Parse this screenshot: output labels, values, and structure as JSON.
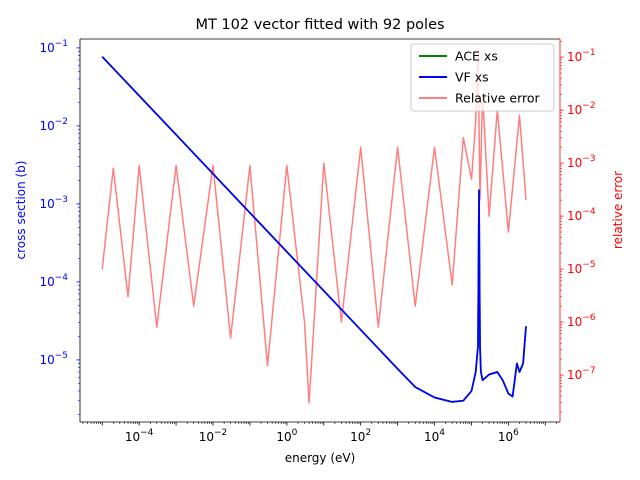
{
  "chart_data": {
    "type": "line",
    "title": "MT 102 vector fitted with 92 poles",
    "xlabel": "energy (eV)",
    "ylabel_left": "cross section (b)",
    "ylabel_right": "relative error",
    "x_scale": "log",
    "y_scale_left": "log",
    "y_scale_right": "log",
    "xlim": [
      2.5e-06,
      25000000
    ],
    "ylim_left": [
      1.6e-06,
      0.13
    ],
    "ylim_right": [
      1.3e-08,
      0.22
    ],
    "grid": false,
    "legend_position": "upper-right",
    "x_ticks": [
      {
        "value": 0.0001,
        "base": "10",
        "exp": "−4"
      },
      {
        "value": 0.01,
        "base": "10",
        "exp": "−2"
      },
      {
        "value": 1,
        "base": "10",
        "exp": "0"
      },
      {
        "value": 100,
        "base": "10",
        "exp": "2"
      },
      {
        "value": 10000,
        "base": "10",
        "exp": "4"
      },
      {
        "value": 1000000,
        "base": "10",
        "exp": "6"
      }
    ],
    "y_left_ticks": [
      {
        "value": 0.1,
        "base": "10",
        "exp": "−1"
      },
      {
        "value": 0.01,
        "base": "10",
        "exp": "−2"
      },
      {
        "value": 0.001,
        "base": "10",
        "exp": "−3"
      },
      {
        "value": 0.0001,
        "base": "10",
        "exp": "−4"
      },
      {
        "value": 1e-05,
        "base": "10",
        "exp": "−5"
      }
    ],
    "y_right_ticks": [
      {
        "value": 0.1,
        "base": "10",
        "exp": "−1"
      },
      {
        "value": 0.01,
        "base": "10",
        "exp": "−2"
      },
      {
        "value": 0.001,
        "base": "10",
        "exp": "−3"
      },
      {
        "value": 0.0001,
        "base": "10",
        "exp": "−4"
      },
      {
        "value": 1e-05,
        "base": "10",
        "exp": "−5"
      },
      {
        "value": 1e-06,
        "base": "10",
        "exp": "−6"
      },
      {
        "value": 1e-07,
        "base": "10",
        "exp": "−7"
      }
    ],
    "colors": {
      "ace": "#008000",
      "vf": "#0000ff",
      "error": "#ff7f7f",
      "left_axis": "#0000ff",
      "right_axis": "#ff0000"
    },
    "series": [
      {
        "name": "ACE xs",
        "axis": "left",
        "x": [
          1e-05,
          0.001,
          0.1,
          10,
          1000,
          3000,
          10000,
          30000,
          60000,
          100000,
          130000,
          150000,
          160000,
          170000,
          180000,
          200000,
          300000,
          500000,
          700000,
          1000000,
          1300000,
          1700000,
          2000000,
          2500000,
          3000000
        ],
        "y": [
          0.077,
          0.0077,
          0.00077,
          7.7e-05,
          7.7e-06,
          4.5e-06,
          3.3e-06,
          2.9e-06,
          3e-06,
          4e-06,
          7e-06,
          1.5e-05,
          0.0015,
          1.5e-05,
          7e-06,
          5.5e-06,
          6.5e-06,
          7e-06,
          5.5e-06,
          3.7e-06,
          3.4e-06,
          9e-06,
          7e-06,
          9e-06,
          2.7e-05
        ]
      },
      {
        "name": "VF xs",
        "axis": "left",
        "x": [
          1e-05,
          0.001,
          0.1,
          10,
          1000,
          3000,
          10000,
          30000,
          60000,
          100000,
          130000,
          150000,
          160000,
          170000,
          180000,
          200000,
          300000,
          500000,
          700000,
          1000000,
          1300000,
          1700000,
          2000000,
          2500000,
          3000000
        ],
        "y": [
          0.077,
          0.0077,
          0.00077,
          7.7e-05,
          7.7e-06,
          4.5e-06,
          3.3e-06,
          2.9e-06,
          3e-06,
          4e-06,
          7e-06,
          1.5e-05,
          0.0015,
          1.5e-05,
          7e-06,
          5.5e-06,
          6.5e-06,
          7e-06,
          5.5e-06,
          3.7e-06,
          3.4e-06,
          9e-06,
          7e-06,
          9e-06,
          2.7e-05
        ]
      },
      {
        "name": "Relative error",
        "axis": "right",
        "x": [
          1e-05,
          2e-05,
          5e-05,
          0.0001,
          0.0003,
          0.001,
          0.003,
          0.01,
          0.03,
          0.1,
          0.3,
          1,
          3,
          4,
          10,
          30,
          100,
          300,
          1000,
          3000,
          10000,
          30000,
          60000,
          100000,
          130000,
          150000,
          170000,
          200000,
          300000,
          500000,
          1000000,
          2000000,
          3000000
        ],
        "y": [
          1e-05,
          0.0008,
          3e-06,
          0.0009,
          8e-07,
          0.0009,
          2e-06,
          0.0009,
          5e-07,
          0.0009,
          1.5e-07,
          0.0009,
          1e-06,
          3e-08,
          0.001,
          1e-06,
          0.002,
          8e-07,
          0.002,
          2e-06,
          0.002,
          5e-06,
          0.003,
          0.0005,
          0.006,
          0.15,
          0.0002,
          0.02,
          0.0001,
          0.01,
          5e-05,
          0.008,
          0.0002
        ]
      }
    ]
  }
}
